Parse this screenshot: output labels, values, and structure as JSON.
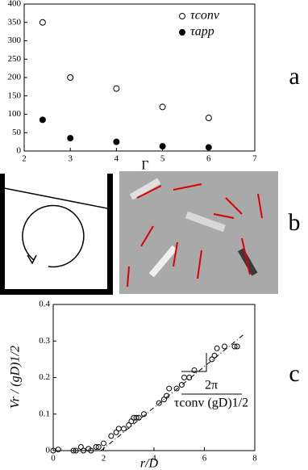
{
  "chart_data": [
    {
      "type": "scatter",
      "panel_label": "a",
      "x_label": "Γ",
      "xlim": [
        2,
        7
      ],
      "xticks": [
        2,
        3,
        4,
        5,
        6,
        7
      ],
      "ylim": [
        0,
        400
      ],
      "yticks": [
        0,
        50,
        100,
        150,
        200,
        250,
        300,
        350,
        400
      ],
      "legend": "upper right",
      "series": [
        {
          "name": "τconv",
          "color": "#000000",
          "marker": "open",
          "x": [
            2.4,
            3,
            4,
            5,
            6
          ],
          "values": [
            350,
            200,
            170,
            120,
            90
          ]
        },
        {
          "name": "τapp",
          "color": "#000000",
          "marker": "filled",
          "x": [
            2.4,
            3,
            4,
            5,
            6
          ],
          "values": [
            85,
            35,
            25,
            13,
            10
          ]
        }
      ]
    },
    {
      "type": "image",
      "panel_label": "b"
    },
    {
      "type": "scatter",
      "panel_label": "c",
      "x_label": "r/D",
      "y_label": "Vr / (gD)1/2",
      "slope_label_top": "2π",
      "slope_label_bottom": "τconv (gD)1/2",
      "xlim": [
        0,
        8
      ],
      "xticks": [
        0,
        2,
        4,
        6,
        8
      ],
      "ylim": [
        0,
        0.4
      ],
      "yticks": [
        0,
        0.1,
        0.2,
        0.3,
        0.4
      ],
      "fit_line": {
        "x": [
          1.9,
          7.6
        ],
        "values": [
          0,
          0.32
        ]
      },
      "series": [
        {
          "color": "#000000",
          "marker": "open",
          "x": [
            0,
            0.2,
            0.8,
            0.9,
            1.1,
            1.2,
            1.4,
            1.5,
            1.7,
            1.8,
            2.0,
            2.3,
            2.5,
            2.6,
            2.8,
            3.0,
            3.1,
            3.2,
            3.3,
            3.4,
            3.6,
            4.2,
            4.4,
            4.5,
            4.6,
            4.9,
            5.1,
            5.2,
            5.4,
            5.6,
            6.3,
            6.4,
            6.5,
            6.8,
            7.2,
            7.3
          ],
          "values": [
            0,
            0.003,
            0,
            0,
            0.01,
            0,
            0.005,
            0,
            0.01,
            0.01,
            0.02,
            0.04,
            0.05,
            0.06,
            0.06,
            0.07,
            0.08,
            0.09,
            0.09,
            0.09,
            0.1,
            0.13,
            0.14,
            0.15,
            0.17,
            0.17,
            0.18,
            0.2,
            0.2,
            0.22,
            0.25,
            0.26,
            0.28,
            0.285,
            0.285,
            0.285
          ]
        }
      ]
    }
  ]
}
